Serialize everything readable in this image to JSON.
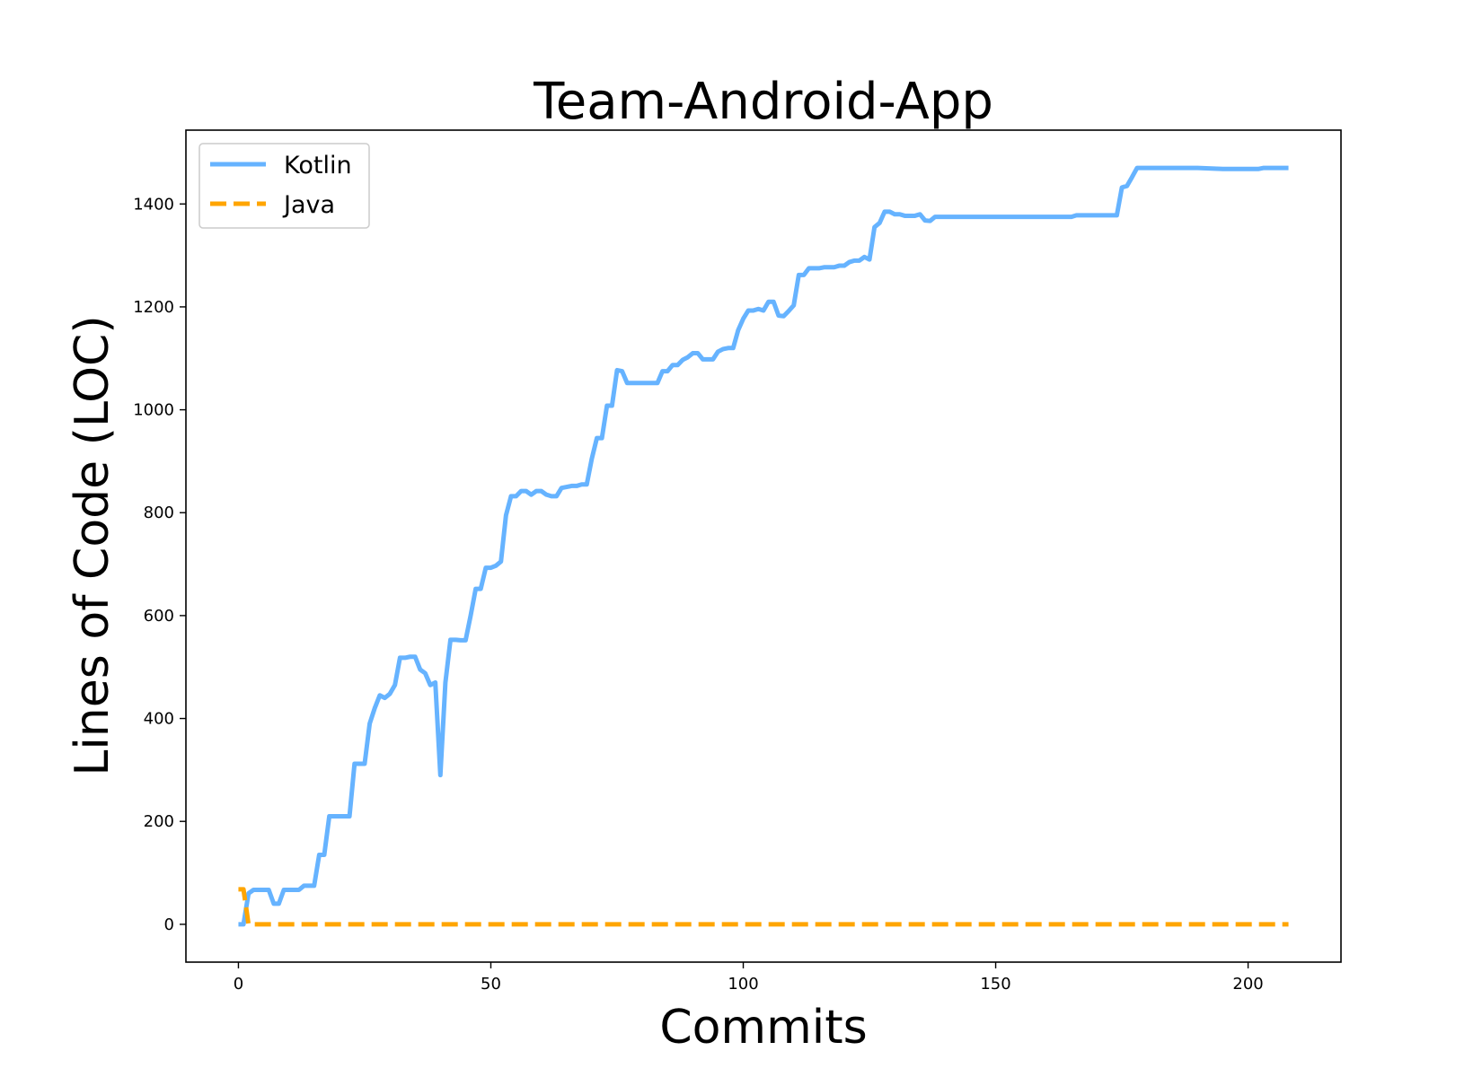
{
  "chart_data": {
    "type": "line",
    "title": "Team-Android-App",
    "xlabel": "Commits",
    "ylabel": "Lines of Code (LOC)",
    "xlim": [
      -10.4,
      218.4
    ],
    "ylim": [
      -73.5,
      1543.5
    ],
    "xticks": [
      0,
      50,
      100,
      150,
      200
    ],
    "yticks": [
      0,
      200,
      400,
      600,
      800,
      1000,
      1200,
      1400
    ],
    "grid": false,
    "legend_position": "top-left",
    "series": [
      {
        "name": "Kotlin",
        "color": "#66b3ff",
        "style": "solid",
        "points": [
          [
            0,
            0
          ],
          [
            1,
            0
          ],
          [
            2,
            60
          ],
          [
            3,
            67
          ],
          [
            4,
            67
          ],
          [
            5,
            67
          ],
          [
            6,
            67
          ],
          [
            7,
            40
          ],
          [
            8,
            40
          ],
          [
            9,
            67
          ],
          [
            10,
            67
          ],
          [
            11,
            67
          ],
          [
            12,
            67
          ],
          [
            13,
            75
          ],
          [
            14,
            75
          ],
          [
            15,
            75
          ],
          [
            16,
            135
          ],
          [
            17,
            135
          ],
          [
            18,
            210
          ],
          [
            19,
            210
          ],
          [
            20,
            210
          ],
          [
            21,
            210
          ],
          [
            22,
            210
          ],
          [
            23,
            312
          ],
          [
            24,
            312
          ],
          [
            25,
            312
          ],
          [
            26,
            390
          ],
          [
            27,
            420
          ],
          [
            28,
            445
          ],
          [
            29,
            440
          ],
          [
            30,
            448
          ],
          [
            31,
            465
          ],
          [
            32,
            518
          ],
          [
            33,
            518
          ],
          [
            34,
            520
          ],
          [
            35,
            520
          ],
          [
            36,
            495
          ],
          [
            37,
            488
          ],
          [
            38,
            465
          ],
          [
            39,
            470
          ],
          [
            40,
            290
          ],
          [
            41,
            470
          ],
          [
            42,
            553
          ],
          [
            43,
            553
          ],
          [
            44,
            552
          ],
          [
            45,
            552
          ],
          [
            46,
            600
          ],
          [
            47,
            652
          ],
          [
            48,
            652
          ],
          [
            49,
            693
          ],
          [
            50,
            693
          ],
          [
            51,
            697
          ],
          [
            52,
            705
          ],
          [
            53,
            795
          ],
          [
            54,
            832
          ],
          [
            55,
            832
          ],
          [
            56,
            842
          ],
          [
            57,
            842
          ],
          [
            58,
            835
          ],
          [
            59,
            842
          ],
          [
            60,
            842
          ],
          [
            61,
            835
          ],
          [
            62,
            832
          ],
          [
            63,
            832
          ],
          [
            64,
            848
          ],
          [
            65,
            850
          ],
          [
            66,
            852
          ],
          [
            67,
            852
          ],
          [
            68,
            855
          ],
          [
            69,
            855
          ],
          [
            70,
            905
          ],
          [
            71,
            945
          ],
          [
            72,
            945
          ],
          [
            73,
            1008
          ],
          [
            74,
            1008
          ],
          [
            75,
            1077
          ],
          [
            76,
            1075
          ],
          [
            77,
            1052
          ],
          [
            78,
            1052
          ],
          [
            79,
            1052
          ],
          [
            80,
            1052
          ],
          [
            81,
            1052
          ],
          [
            82,
            1052
          ],
          [
            83,
            1052
          ],
          [
            84,
            1075
          ],
          [
            85,
            1075
          ],
          [
            86,
            1087
          ],
          [
            87,
            1087
          ],
          [
            88,
            1097
          ],
          [
            89,
            1102
          ],
          [
            90,
            1110
          ],
          [
            91,
            1110
          ],
          [
            92,
            1098
          ],
          [
            93,
            1098
          ],
          [
            94,
            1098
          ],
          [
            95,
            1113
          ],
          [
            96,
            1118
          ],
          [
            97,
            1120
          ],
          [
            98,
            1120
          ],
          [
            99,
            1155
          ],
          [
            100,
            1177
          ],
          [
            101,
            1193
          ],
          [
            102,
            1193
          ],
          [
            103,
            1196
          ],
          [
            104,
            1193
          ],
          [
            105,
            1210
          ],
          [
            106,
            1210
          ],
          [
            107,
            1183
          ],
          [
            108,
            1182
          ],
          [
            109,
            1192
          ],
          [
            110,
            1203
          ],
          [
            111,
            1262
          ],
          [
            112,
            1262
          ],
          [
            113,
            1275
          ],
          [
            114,
            1275
          ],
          [
            115,
            1275
          ],
          [
            116,
            1277
          ],
          [
            117,
            1277
          ],
          [
            118,
            1277
          ],
          [
            119,
            1280
          ],
          [
            120,
            1280
          ],
          [
            121,
            1287
          ],
          [
            122,
            1290
          ],
          [
            123,
            1290
          ],
          [
            124,
            1297
          ],
          [
            125,
            1292
          ],
          [
            126,
            1355
          ],
          [
            127,
            1363
          ],
          [
            128,
            1385
          ],
          [
            129,
            1385
          ],
          [
            130,
            1380
          ],
          [
            131,
            1380
          ],
          [
            132,
            1377
          ],
          [
            133,
            1377
          ],
          [
            134,
            1377
          ],
          [
            135,
            1380
          ],
          [
            136,
            1368
          ],
          [
            137,
            1367
          ],
          [
            138,
            1375
          ],
          [
            139,
            1375
          ],
          [
            140,
            1375
          ],
          [
            145,
            1375
          ],
          [
            150,
            1375
          ],
          [
            155,
            1375
          ],
          [
            160,
            1375
          ],
          [
            165,
            1375
          ],
          [
            166,
            1378
          ],
          [
            167,
            1378
          ],
          [
            170,
            1378
          ],
          [
            173,
            1378
          ],
          [
            174,
            1378
          ],
          [
            175,
            1432
          ],
          [
            176,
            1435
          ],
          [
            177,
            1452
          ],
          [
            178,
            1470
          ],
          [
            180,
            1470
          ],
          [
            185,
            1470
          ],
          [
            190,
            1470
          ],
          [
            195,
            1468
          ],
          [
            200,
            1468
          ],
          [
            202,
            1468
          ],
          [
            203,
            1470
          ],
          [
            205,
            1470
          ],
          [
            208,
            1470
          ]
        ]
      },
      {
        "name": "Java",
        "color": "#ffa500",
        "style": "dashed",
        "points": [
          [
            0,
            68
          ],
          [
            1,
            68
          ],
          [
            2,
            0
          ],
          [
            3,
            0
          ],
          [
            208,
            0
          ]
        ]
      }
    ]
  }
}
